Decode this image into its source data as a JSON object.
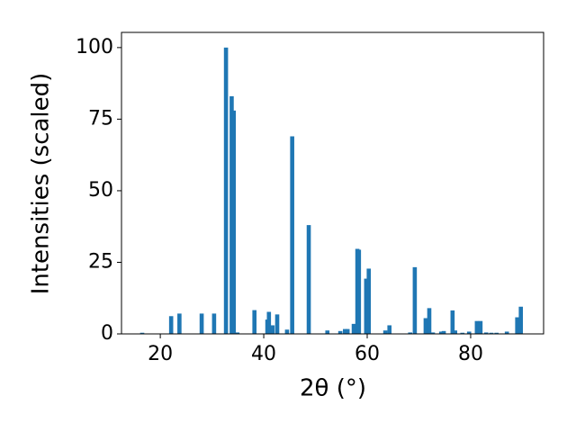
{
  "chart_data": {
    "type": "bar",
    "xlabel": "2θ (°)",
    "ylabel": "Intensities (scaled)",
    "color": "#1f77b4",
    "x": [
      16.5,
      22.1,
      23.7,
      28.0,
      30.4,
      32.7,
      33.8,
      34.2,
      34.9,
      38.2,
      40.7,
      41.0,
      41.7,
      42.6,
      44.5,
      45.5,
      48.7,
      52.3,
      54.8,
      55.7,
      56.2,
      57.4,
      58.1,
      58.4,
      59.8,
      60.3,
      63.5,
      64.3,
      68.3,
      69.2,
      71.3,
      72.0,
      72.7,
      74.3,
      74.8,
      76.5,
      77.0,
      78.4,
      79.7,
      81.2,
      81.9,
      83.0,
      84.0,
      85.0,
      87.0,
      89.0,
      89.7
    ],
    "values": [
      0.4,
      6.2,
      7.1,
      7.1,
      7.1,
      100,
      83,
      78,
      0.5,
      8.3,
      5,
      7.7,
      3,
      6.8,
      1.5,
      69,
      38,
      1.2,
      1,
      1.7,
      1.7,
      3.5,
      29.7,
      29.4,
      19.3,
      22.8,
      1.2,
      3,
      0.5,
      23.3,
      5.5,
      9,
      0.5,
      0.8,
      1,
      8.2,
      1.2,
      0.4,
      0.8,
      4.5,
      4.5,
      0.5,
      0.4,
      0.4,
      0.8,
      5.8,
      9.5
    ],
    "xlim": [
      12.5,
      94.1
    ],
    "ylim": [
      0,
      105.3
    ],
    "xticks": [
      20,
      40,
      60,
      80
    ],
    "yticks": [
      0,
      25,
      50,
      75,
      100
    ]
  }
}
